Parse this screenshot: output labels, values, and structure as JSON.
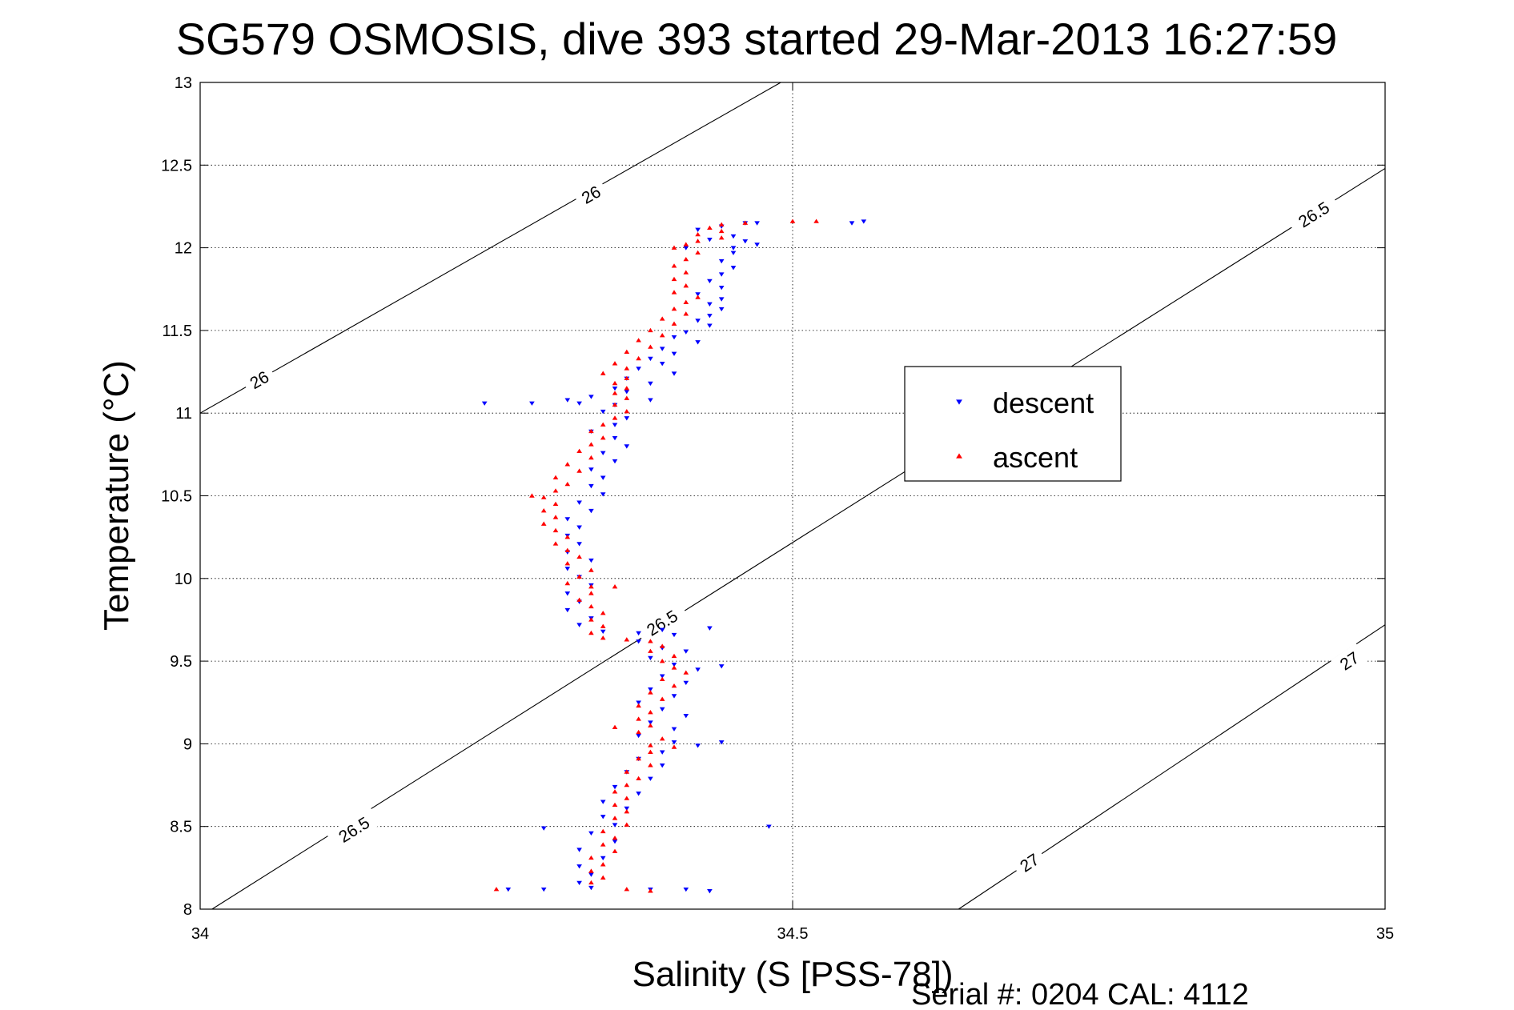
{
  "chart_data": {
    "type": "scatter",
    "title": "SG579 OSMOSIS, dive 393 started 29-Mar-2013 16:27:59",
    "xlabel": "Salinity (S [PSS-78])",
    "ylabel": "Temperature (°C)",
    "xlim": [
      34,
      35
    ],
    "ylim": [
      8,
      13
    ],
    "xticks": [
      34,
      34.5,
      35
    ],
    "xtick_labels": [
      "34",
      "34.5",
      "35"
    ],
    "yticks": [
      8,
      8.5,
      9,
      9.5,
      10,
      10.5,
      11,
      11.5,
      12,
      12.5,
      13
    ],
    "ytick_labels": [
      "8",
      "8.5",
      "9",
      "9.5",
      "10",
      "10.5",
      "11",
      "11.5",
      "12",
      "12.5",
      "13"
    ],
    "grid": true,
    "legend_position": "right",
    "footer": "Serial #: 0204  CAL: 4112",
    "contours": [
      {
        "level": "26",
        "points": [
          [
            34.0,
            11.0
          ],
          [
            34.49,
            13.0
          ]
        ],
        "labels": [
          [
            34.05,
            11.2
          ],
          [
            34.33,
            12.32
          ]
        ]
      },
      {
        "level": "26.5",
        "points": [
          [
            34.01,
            8.0
          ],
          [
            35.0,
            12.48
          ]
        ],
        "labels": [
          [
            34.13,
            8.48
          ],
          [
            34.39,
            9.73
          ],
          [
            34.94,
            12.2
          ]
        ]
      },
      {
        "level": "27",
        "points": [
          [
            34.64,
            8.0
          ],
          [
            35.0,
            9.72
          ]
        ],
        "labels": [
          [
            34.7,
            8.28
          ],
          [
            34.97,
            9.5
          ]
        ]
      }
    ],
    "series": [
      {
        "name": "descent",
        "marker": "triangle-down",
        "color": "#0000ff",
        "points": [
          [
            34.47,
            12.15
          ],
          [
            34.55,
            12.15
          ],
          [
            34.46,
            12.15
          ],
          [
            34.44,
            12.13
          ],
          [
            34.42,
            12.11
          ],
          [
            34.45,
            12.07
          ],
          [
            34.43,
            12.05
          ],
          [
            34.46,
            12.04
          ],
          [
            34.47,
            12.02
          ],
          [
            34.41,
            12.0
          ],
          [
            34.45,
            11.97
          ],
          [
            34.44,
            11.92
          ],
          [
            34.45,
            11.88
          ],
          [
            34.44,
            11.84
          ],
          [
            34.43,
            11.8
          ],
          [
            34.44,
            11.76
          ],
          [
            34.42,
            11.72
          ],
          [
            34.44,
            11.69
          ],
          [
            34.43,
            11.66
          ],
          [
            34.44,
            11.63
          ],
          [
            34.43,
            11.59
          ],
          [
            34.42,
            11.56
          ],
          [
            34.43,
            11.53
          ],
          [
            34.41,
            11.49
          ],
          [
            34.4,
            11.46
          ],
          [
            34.42,
            11.43
          ],
          [
            34.39,
            11.39
          ],
          [
            34.4,
            11.36
          ],
          [
            34.38,
            11.33
          ],
          [
            34.39,
            11.3
          ],
          [
            34.37,
            11.27
          ],
          [
            34.4,
            11.24
          ],
          [
            34.36,
            11.21
          ],
          [
            34.38,
            11.18
          ],
          [
            34.35,
            11.15
          ],
          [
            34.36,
            11.13
          ],
          [
            34.33,
            11.1
          ],
          [
            34.31,
            11.08
          ],
          [
            34.28,
            11.06
          ],
          [
            34.32,
            11.06
          ],
          [
            34.35,
            11.05
          ],
          [
            34.38,
            11.08
          ],
          [
            34.34,
            11.01
          ],
          [
            34.36,
            10.97
          ],
          [
            34.35,
            10.93
          ],
          [
            34.33,
            10.89
          ],
          [
            34.35,
            10.85
          ],
          [
            34.36,
            10.8
          ],
          [
            34.34,
            10.76
          ],
          [
            34.35,
            10.71
          ],
          [
            34.33,
            10.66
          ],
          [
            34.34,
            10.61
          ],
          [
            34.33,
            10.56
          ],
          [
            34.34,
            10.51
          ],
          [
            34.32,
            10.46
          ],
          [
            34.33,
            10.41
          ],
          [
            34.31,
            10.36
          ],
          [
            34.32,
            10.31
          ],
          [
            34.31,
            10.26
          ],
          [
            34.32,
            10.21
          ],
          [
            34.31,
            10.16
          ],
          [
            34.33,
            10.11
          ],
          [
            34.31,
            10.06
          ],
          [
            34.32,
            10.01
          ],
          [
            34.33,
            9.96
          ],
          [
            34.31,
            9.91
          ],
          [
            34.32,
            9.86
          ],
          [
            34.31,
            9.81
          ],
          [
            34.33,
            9.76
          ],
          [
            34.32,
            9.72
          ],
          [
            34.34,
            9.68
          ],
          [
            34.37,
            9.67
          ],
          [
            34.39,
            9.69
          ],
          [
            34.4,
            9.66
          ],
          [
            34.37,
            9.62
          ],
          [
            34.39,
            9.58
          ],
          [
            34.41,
            9.56
          ],
          [
            34.38,
            9.52
          ],
          [
            34.4,
            9.48
          ],
          [
            34.42,
            9.45
          ],
          [
            34.39,
            9.41
          ],
          [
            34.41,
            9.37
          ],
          [
            34.38,
            9.33
          ],
          [
            34.4,
            9.29
          ],
          [
            34.37,
            9.25
          ],
          [
            34.39,
            9.21
          ],
          [
            34.41,
            9.17
          ],
          [
            34.38,
            9.13
          ],
          [
            34.4,
            9.09
          ],
          [
            34.37,
            9.05
          ],
          [
            34.4,
            9.01
          ],
          [
            34.42,
            8.99
          ],
          [
            34.39,
            8.95
          ],
          [
            34.37,
            8.91
          ],
          [
            34.39,
            8.87
          ],
          [
            34.36,
            8.83
          ],
          [
            34.38,
            8.79
          ],
          [
            34.35,
            8.74
          ],
          [
            34.37,
            8.7
          ],
          [
            34.34,
            8.65
          ],
          [
            34.36,
            8.61
          ],
          [
            34.34,
            8.56
          ],
          [
            34.35,
            8.51
          ],
          [
            34.33,
            8.46
          ],
          [
            34.35,
            8.41
          ],
          [
            34.32,
            8.36
          ],
          [
            34.34,
            8.31
          ],
          [
            34.32,
            8.26
          ],
          [
            34.33,
            8.21
          ],
          [
            34.32,
            8.16
          ],
          [
            34.33,
            8.13
          ],
          [
            34.38,
            8.12
          ],
          [
            34.41,
            8.12
          ],
          [
            34.43,
            8.11
          ],
          [
            34.29,
            8.12
          ],
          [
            34.26,
            8.12
          ],
          [
            34.29,
            8.49
          ],
          [
            34.48,
            8.5
          ],
          [
            34.44,
            9.47
          ],
          [
            34.43,
            9.7
          ],
          [
            34.44,
            9.01
          ],
          [
            34.56,
            12.16
          ],
          [
            34.24,
            11.06
          ],
          [
            34.45,
            12.0
          ]
        ]
      },
      {
        "name": "ascent",
        "marker": "triangle-up",
        "color": "#ff0000",
        "points": [
          [
            34.52,
            12.16
          ],
          [
            34.5,
            12.16
          ],
          [
            34.46,
            12.15
          ],
          [
            34.44,
            12.14
          ],
          [
            34.43,
            12.12
          ],
          [
            34.44,
            12.1
          ],
          [
            34.42,
            12.08
          ],
          [
            34.44,
            12.06
          ],
          [
            34.42,
            12.04
          ],
          [
            34.41,
            12.02
          ],
          [
            34.4,
            12.0
          ],
          [
            34.42,
            11.97
          ],
          [
            34.41,
            11.93
          ],
          [
            34.4,
            11.89
          ],
          [
            34.41,
            11.85
          ],
          [
            34.4,
            11.81
          ],
          [
            34.41,
            11.77
          ],
          [
            34.4,
            11.73
          ],
          [
            34.42,
            11.7
          ],
          [
            34.41,
            11.67
          ],
          [
            34.4,
            11.63
          ],
          [
            34.41,
            11.6
          ],
          [
            34.39,
            11.57
          ],
          [
            34.4,
            11.54
          ],
          [
            34.38,
            11.5
          ],
          [
            34.39,
            11.47
          ],
          [
            34.37,
            11.44
          ],
          [
            34.38,
            11.4
          ],
          [
            34.36,
            11.37
          ],
          [
            34.37,
            11.33
          ],
          [
            34.35,
            11.3
          ],
          [
            34.36,
            11.27
          ],
          [
            34.34,
            11.24
          ],
          [
            34.36,
            11.21
          ],
          [
            34.35,
            11.18
          ],
          [
            34.36,
            11.15
          ],
          [
            34.35,
            11.12
          ],
          [
            34.36,
            11.09
          ],
          [
            34.35,
            11.05
          ],
          [
            34.36,
            11.01
          ],
          [
            34.35,
            10.97
          ],
          [
            34.34,
            10.93
          ],
          [
            34.33,
            10.89
          ],
          [
            34.34,
            10.85
          ],
          [
            34.33,
            10.81
          ],
          [
            34.32,
            10.77
          ],
          [
            34.33,
            10.73
          ],
          [
            34.31,
            10.69
          ],
          [
            34.32,
            10.65
          ],
          [
            34.3,
            10.61
          ],
          [
            34.31,
            10.57
          ],
          [
            34.3,
            10.53
          ],
          [
            34.29,
            10.49
          ],
          [
            34.3,
            10.45
          ],
          [
            34.29,
            10.41
          ],
          [
            34.3,
            10.37
          ],
          [
            34.29,
            10.33
          ],
          [
            34.3,
            10.29
          ],
          [
            34.31,
            10.25
          ],
          [
            34.3,
            10.21
          ],
          [
            34.31,
            10.17
          ],
          [
            34.32,
            10.13
          ],
          [
            34.31,
            10.09
          ],
          [
            34.33,
            10.05
          ],
          [
            34.32,
            10.01
          ],
          [
            34.31,
            9.97
          ],
          [
            34.33,
            9.95
          ],
          [
            34.35,
            9.95
          ],
          [
            34.33,
            9.91
          ],
          [
            34.32,
            9.87
          ],
          [
            34.33,
            9.83
          ],
          [
            34.34,
            9.79
          ],
          [
            34.33,
            9.75
          ],
          [
            34.34,
            9.71
          ],
          [
            34.33,
            9.67
          ],
          [
            34.34,
            9.64
          ],
          [
            34.36,
            9.63
          ],
          [
            34.38,
            9.62
          ],
          [
            34.39,
            9.59
          ],
          [
            34.38,
            9.56
          ],
          [
            34.4,
            9.53
          ],
          [
            34.39,
            9.5
          ],
          [
            34.4,
            9.46
          ],
          [
            34.41,
            9.43
          ],
          [
            34.39,
            9.39
          ],
          [
            34.4,
            9.35
          ],
          [
            34.38,
            9.31
          ],
          [
            34.39,
            9.27
          ],
          [
            34.37,
            9.23
          ],
          [
            34.38,
            9.19
          ],
          [
            34.37,
            9.15
          ],
          [
            34.38,
            9.11
          ],
          [
            34.37,
            9.07
          ],
          [
            34.39,
            9.03
          ],
          [
            34.38,
            8.99
          ],
          [
            34.4,
            8.98
          ],
          [
            34.38,
            8.95
          ],
          [
            34.37,
            8.91
          ],
          [
            34.38,
            8.87
          ],
          [
            34.36,
            8.83
          ],
          [
            34.37,
            8.79
          ],
          [
            34.36,
            8.75
          ],
          [
            34.35,
            8.71
          ],
          [
            34.36,
            8.67
          ],
          [
            34.35,
            8.63
          ],
          [
            34.36,
            8.59
          ],
          [
            34.35,
            8.55
          ],
          [
            34.36,
            8.51
          ],
          [
            34.34,
            8.47
          ],
          [
            34.35,
            8.43
          ],
          [
            34.34,
            8.39
          ],
          [
            34.35,
            8.35
          ],
          [
            34.33,
            8.31
          ],
          [
            34.34,
            8.27
          ],
          [
            34.33,
            8.23
          ],
          [
            34.34,
            8.19
          ],
          [
            34.33,
            8.16
          ],
          [
            34.36,
            8.12
          ],
          [
            34.38,
            8.11
          ],
          [
            34.25,
            8.12
          ],
          [
            34.28,
            10.5
          ],
          [
            34.35,
            9.1
          ]
        ]
      }
    ]
  }
}
